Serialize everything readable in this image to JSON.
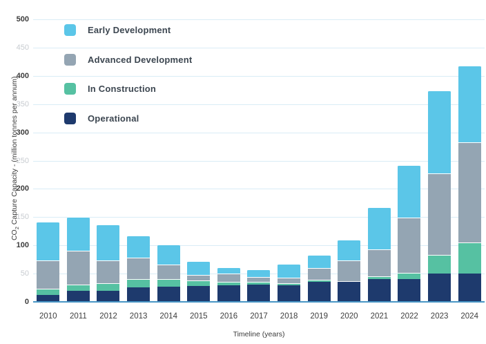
{
  "chart_data": {
    "type": "bar",
    "stacked": true,
    "title": "",
    "xlabel": "Timeline (years)",
    "ylabel": "CO2 Capture Capacity - (million tonnes per annum)",
    "ylabel_parts": {
      "prefix": "CO",
      "sub": "2",
      "rest": " Capture Capacity - (million tonnes per annum)"
    },
    "ylim": [
      0,
      500
    ],
    "ytick_step": 50,
    "y_ticks": [
      0,
      50,
      100,
      150,
      200,
      250,
      300,
      350,
      400,
      450,
      500
    ],
    "grid": true,
    "legend_position": "top-left",
    "categories": [
      "2010",
      "2011",
      "2012",
      "2013",
      "2014",
      "2015",
      "2016",
      "2017",
      "2018",
      "2019",
      "2020",
      "2021",
      "2022",
      "2023",
      "2024"
    ],
    "series": [
      {
        "name": "Operational",
        "color": "#1e3a6d",
        "values": [
          12,
          20,
          20,
          26,
          27,
          28,
          29,
          30,
          29,
          36,
          36,
          40,
          40,
          50,
          50
        ]
      },
      {
        "name": "In Construction",
        "color": "#56c1a2",
        "values": [
          11,
          11,
          13,
          14,
          13,
          10,
          6,
          5,
          4,
          3,
          1,
          5,
          11,
          33,
          55
        ]
      },
      {
        "name": "Advanced Development",
        "color": "#94a5b3",
        "values": [
          50,
          59,
          40,
          38,
          26,
          10,
          15,
          9,
          10,
          21,
          36,
          48,
          98,
          144,
          178
        ]
      },
      {
        "name": "Early Development",
        "color": "#5bc6e8",
        "values": [
          69,
          61,
          64,
          40,
          35,
          24,
          11,
          14,
          24,
          23,
          37,
          74,
          93,
          147,
          135
        ]
      }
    ],
    "totals": [
      142,
      151,
      137,
      118,
      101,
      72,
      61,
      58,
      67,
      83,
      110,
      167,
      242,
      374,
      418
    ]
  },
  "legend": {
    "items": [
      {
        "label": "Early Development",
        "color": "#5bc6e8"
      },
      {
        "label": "Advanced Development",
        "color": "#94a5b3"
      },
      {
        "label": "In Construction",
        "color": "#56c1a2"
      },
      {
        "label": "Operational",
        "color": "#1e3a6d"
      }
    ]
  },
  "colors": {
    "axis_line": "#4795c5",
    "gridline": "#d9ecf6",
    "tick_major": "#3b3b3b",
    "tick_minor": "#c7cbd0"
  }
}
